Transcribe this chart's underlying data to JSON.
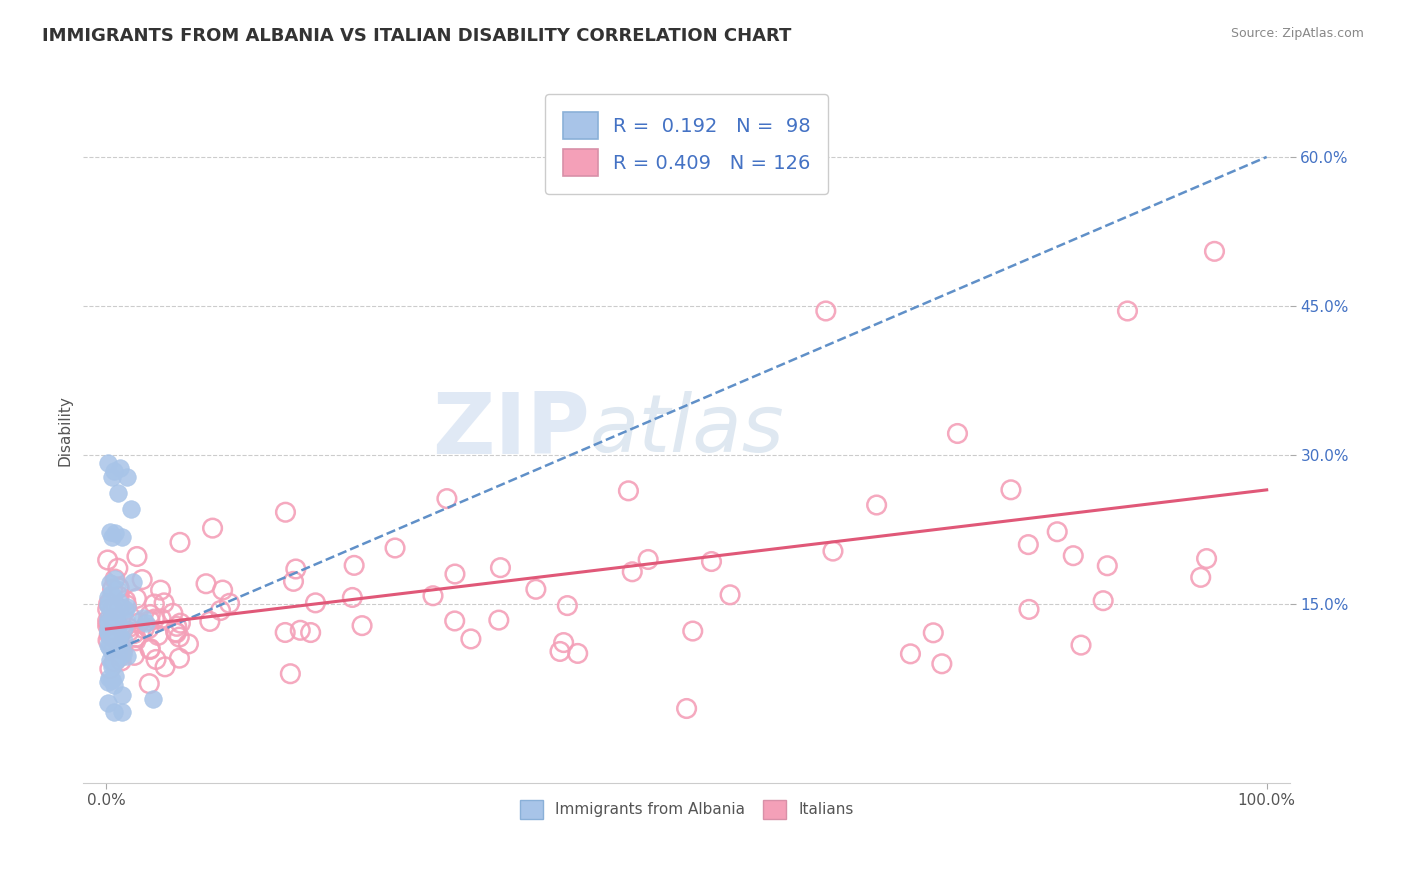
{
  "title": "IMMIGRANTS FROM ALBANIA VS ITALIAN DISABILITY CORRELATION CHART",
  "source": "Source: ZipAtlas.com",
  "xlabel": "",
  "ylabel": "Disability",
  "legend_bottom": [
    "Immigrants from Albania",
    "Italians"
  ],
  "r_albania": 0.192,
  "n_albania": 98,
  "r_italians": 0.409,
  "n_italians": 126,
  "color_albania": "#a8c4e8",
  "color_italians": "#f4a0b8",
  "trendline_albania_color": "#6090c8",
  "trendline_italians_color": "#e05878",
  "xlim": [
    -0.02,
    1.02
  ],
  "ylim": [
    -0.03,
    0.68
  ],
  "yticks": [
    0.15,
    0.3,
    0.45,
    0.6
  ],
  "ytick_labels": [
    "15.0%",
    "30.0%",
    "45.0%",
    "60.0%"
  ],
  "xtick_left": "0.0%",
  "xtick_right": "100.0%",
  "watermark_zip": "ZIP",
  "watermark_atlas": "atlas",
  "background_color": "#ffffff",
  "grid_color": "#cccccc"
}
